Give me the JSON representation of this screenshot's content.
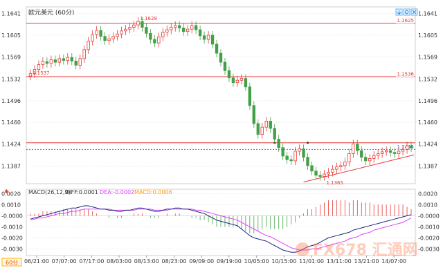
{
  "header": {
    "title": "欧元美元 (60分)",
    "toolbar_icons": [
      "download-icon",
      "settings-icon",
      "close-icon"
    ]
  },
  "chart_data": {
    "type": "candlestick",
    "price_axis": {
      "ticks": [
        "1.1641",
        "1.1605",
        "1.1569",
        "1.1532",
        "1.1496",
        "1.1460",
        "1.1424",
        "1.1387"
      ],
      "ylim": [
        1.1358,
        1.1652
      ]
    },
    "time_axis": [
      "06/21:00",
      "07/07:00",
      "07/17:00",
      "08/03:00",
      "08/13:00",
      "08/23:00",
      "09/09:00",
      "09/19:00",
      "10/05:00",
      "10/15:00",
      "11/01:00",
      "13/11:00",
      "13/21:00",
      "14/07:00"
    ],
    "closes": [
      1.1541,
      1.1548,
      1.1556,
      1.1561,
      1.1558,
      1.1564,
      1.156,
      1.1566,
      1.1563,
      1.1568,
      1.1562,
      1.1555,
      1.1566,
      1.1581,
      1.1595,
      1.1606,
      1.1613,
      1.1603,
      1.1596,
      1.1599,
      1.1603,
      1.1607,
      1.1612,
      1.1615,
      1.1618,
      1.1622,
      1.1628,
      1.1618,
      1.1608,
      1.1598,
      1.1592,
      1.1602,
      1.161,
      1.1614,
      1.1618,
      1.1621,
      1.1617,
      1.1611,
      1.1615,
      1.1621,
      1.1614,
      1.1604,
      1.1598,
      1.1605,
      1.159,
      1.1575,
      1.156,
      1.1546,
      1.1534,
      1.1526,
      1.153,
      1.1533,
      1.1519,
      1.1488,
      1.1458,
      1.144,
      1.1452,
      1.1462,
      1.145,
      1.1432,
      1.1418,
      1.1404,
      1.1398,
      1.1396,
      1.1412,
      1.1416,
      1.1402,
      1.1388,
      1.1379,
      1.1372,
      1.137,
      1.1374,
      1.1377,
      1.1382,
      1.1386,
      1.1388,
      1.1394,
      1.1408,
      1.1424,
      1.1413,
      1.1402,
      1.1396,
      1.14,
      1.1405,
      1.1408,
      1.1411,
      1.1413,
      1.141,
      1.1408,
      1.1412,
      1.1415,
      1.1421,
      1.1418
    ],
    "horizontal_lines": [
      {
        "value": 1.1625,
        "label": "1.1625",
        "color": "#e53935"
      },
      {
        "value": 1.1536,
        "label": "1.1536",
        "color": "#e53935"
      },
      {
        "value": 1.1426,
        "label": "",
        "color": "#e53935"
      },
      {
        "value": 1.1415,
        "label": "1.1415",
        "color": "#1e88e5",
        "style": "dotted"
      }
    ],
    "annotations": [
      {
        "text": "1.1628",
        "value": 1.1628
      },
      {
        "text": "1.1537",
        "value": 1.1537
      },
      {
        "text": "1.1365",
        "value": 1.1365
      }
    ],
    "trendline": {
      "from": 1.1363,
      "to": 1.1406,
      "color": "#e53935"
    },
    "macd": {
      "params_label": "MACD(26,12,9)",
      "diff_label": "DIFF:0.0001",
      "dea_label": "DEA:-0.0002",
      "macd_label": "MACD:0.0006",
      "ticks": [
        "0.0020",
        "0.0010",
        "-0.0000",
        "-0.0010",
        "-0.0020",
        "-0.0030"
      ],
      "ylim": [
        -0.0036,
        0.0024
      ],
      "diff": [
        -0.0003,
        -0.0002,
        -0.0001,
        0.0,
        0.0001,
        0.0002,
        0.0003,
        0.0004,
        0.0005,
        0.0006,
        0.0007,
        0.0007,
        0.0008,
        0.0009,
        0.0009,
        0.0008,
        0.0007,
        0.0006,
        0.0006,
        0.0005,
        0.0005,
        0.0004,
        0.0004,
        0.0005,
        0.0005,
        0.0006,
        0.0007,
        0.0007,
        0.0006,
        0.0005,
        0.0004,
        0.0004,
        0.0005,
        0.0006,
        0.0006,
        0.0007,
        0.0007,
        0.0006,
        0.0006,
        0.0005,
        0.0004,
        0.0003,
        0.0002,
        0.0,
        -0.0002,
        -0.0004,
        -0.0005,
        -0.0006,
        -0.0007,
        -0.0008,
        -0.0009,
        -0.0012,
        -0.0015,
        -0.0018,
        -0.002,
        -0.0021,
        -0.0022,
        -0.0023,
        -0.0025,
        -0.0027,
        -0.0029,
        -0.0031,
        -0.0032,
        -0.0033,
        -0.0033,
        -0.0032,
        -0.003,
        -0.0028,
        -0.0027,
        -0.0026,
        -0.0024,
        -0.0022,
        -0.002,
        -0.0019,
        -0.0018,
        -0.0017,
        -0.0016,
        -0.0015,
        -0.0013,
        -0.0012,
        -0.0011,
        -0.001,
        -0.0009,
        -0.0008,
        -0.0007,
        -0.0006,
        -0.0005,
        -0.0004,
        -0.0003,
        -0.0002,
        -0.0001,
        0.0,
        0.0001
      ],
      "dea": [
        -0.0004,
        -0.0003,
        -0.0002,
        -0.0002,
        -0.0001,
        0.0,
        0.0001,
        0.0002,
        0.0002,
        0.0003,
        0.0004,
        0.0004,
        0.0005,
        0.0006,
        0.0006,
        0.0006,
        0.0006,
        0.0006,
        0.0006,
        0.0006,
        0.0005,
        0.0005,
        0.0005,
        0.0005,
        0.0005,
        0.0005,
        0.0006,
        0.0006,
        0.0006,
        0.0006,
        0.0005,
        0.0005,
        0.0005,
        0.0005,
        0.0006,
        0.0006,
        0.0006,
        0.0006,
        0.0006,
        0.0006,
        0.0005,
        0.0005,
        0.0004,
        0.0003,
        0.0002,
        0.0001,
        0.0,
        -0.0001,
        -0.0002,
        -0.0003,
        -0.0004,
        -0.0006,
        -0.0008,
        -0.001,
        -0.0012,
        -0.0014,
        -0.0016,
        -0.0018,
        -0.0019,
        -0.0021,
        -0.0023,
        -0.0025,
        -0.0027,
        -0.0029,
        -0.003,
        -0.0031,
        -0.0031,
        -0.0031,
        -0.003,
        -0.003,
        -0.0029,
        -0.0028,
        -0.0027,
        -0.0026,
        -0.0025,
        -0.0024,
        -0.0023,
        -0.0021,
        -0.002,
        -0.0019,
        -0.0017,
        -0.0016,
        -0.0015,
        -0.0013,
        -0.0012,
        -0.0011,
        -0.001,
        -0.0009,
        -0.0008,
        -0.0007,
        -0.0006,
        -0.0004,
        -0.0002
      ]
    }
  },
  "footer": {
    "period_label": "60分"
  },
  "watermark": {
    "text": "FX678 汇通网"
  },
  "colors": {
    "up": "#e53935",
    "down": "#43a047",
    "diff": "#1a237e",
    "dea": "#e040fb"
  }
}
